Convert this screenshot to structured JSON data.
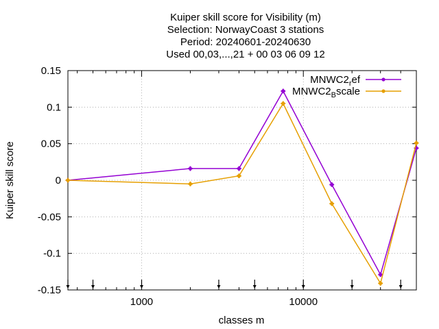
{
  "chart_data": {
    "type": "line",
    "title_lines": [
      "Kuiper skill score  for Visibility (m)",
      "Selection: NorwayCoast      3 stations",
      "Period: 20240601-20240630",
      "Used 00,03,...,21 + 00 03 06 09 12"
    ],
    "xlabel": "classes m",
    "ylabel": "Kuiper skill score",
    "x_scale": "log",
    "xlim": [
      350,
      50000
    ],
    "ylim": [
      -0.15,
      0.15
    ],
    "x_ticks": [
      1000,
      10000
    ],
    "x_tick_labels": [
      "1000",
      "10000"
    ],
    "y_ticks": [
      -0.15,
      -0.1,
      -0.05,
      0,
      0.05,
      0.1,
      0.15
    ],
    "y_tick_labels": [
      "-0.15",
      "-0.1",
      "-0.05",
      "0",
      "0.05",
      "0.1",
      "0.15"
    ],
    "grid": true,
    "legend_position": "top-right",
    "class_markers": [
      350,
      500,
      1000,
      3000,
      5000,
      10000,
      20000,
      40000
    ],
    "series": [
      {
        "name": "MNWC2_ref",
        "legend_main": "MNWC2",
        "legend_sub": "r",
        "legend_tail": "ef",
        "color": "#9400d3",
        "x": [
          350,
          2000,
          4000,
          7500,
          15000,
          30000,
          50000
        ],
        "y": [
          0.0,
          0.016,
          0.016,
          0.122,
          -0.006,
          -0.129,
          0.044
        ]
      },
      {
        "name": "MNWC2_Bscale",
        "legend_main": "MNWC2",
        "legend_sub": "B",
        "legend_tail": "scale",
        "color": "#e69f00",
        "x": [
          350,
          2000,
          4000,
          7500,
          15000,
          30000,
          50000
        ],
        "y": [
          0.0,
          -0.005,
          0.006,
          0.105,
          -0.032,
          -0.141,
          0.051
        ]
      }
    ]
  }
}
